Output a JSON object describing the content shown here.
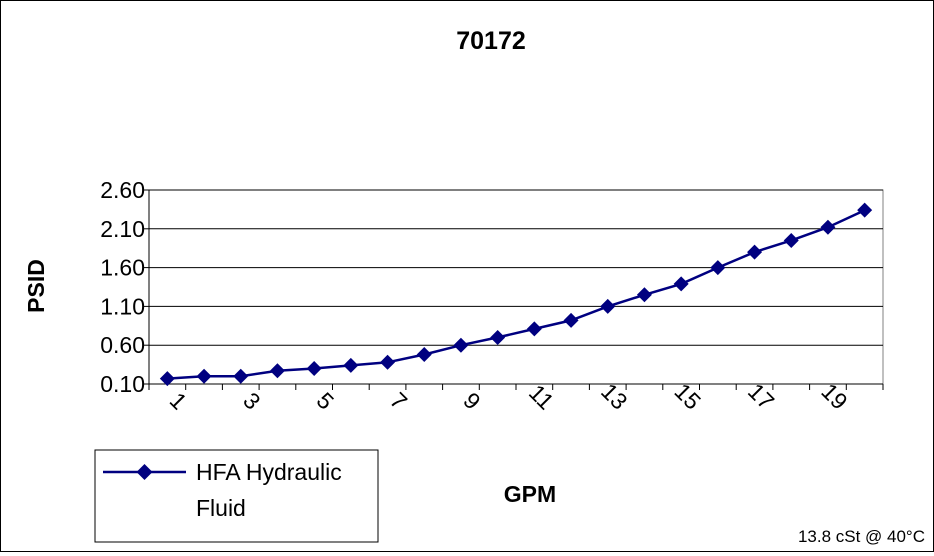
{
  "chart_data": {
    "type": "line",
    "title": "70172",
    "xlabel": "GPM",
    "ylabel": "PSID",
    "x_categories": [
      1,
      2,
      3,
      4,
      5,
      6,
      7,
      8,
      9,
      10,
      11,
      12,
      13,
      14,
      15,
      16,
      17,
      18,
      19,
      20
    ],
    "x_tick_labels": [
      "1",
      "3",
      "5",
      "7",
      "9",
      "11",
      "13",
      "15",
      "17",
      "19"
    ],
    "y_ticks": [
      "0.10",
      "0.60",
      "1.10",
      "1.60",
      "2.10",
      "2.60"
    ],
    "ylim": [
      0.1,
      2.6
    ],
    "grid": "horizontal",
    "legend_position": "bottom-left",
    "series": [
      {
        "name": "HFA Hydraulic Fluid",
        "color": "#000080",
        "marker": "diamond",
        "values": [
          0.17,
          0.2,
          0.2,
          0.27,
          0.3,
          0.34,
          0.38,
          0.48,
          0.6,
          0.7,
          0.81,
          0.92,
          1.1,
          1.25,
          1.39,
          1.6,
          1.8,
          1.95,
          2.12,
          2.34
        ]
      }
    ],
    "annotation": "13.8 cSt @ 40°C"
  }
}
